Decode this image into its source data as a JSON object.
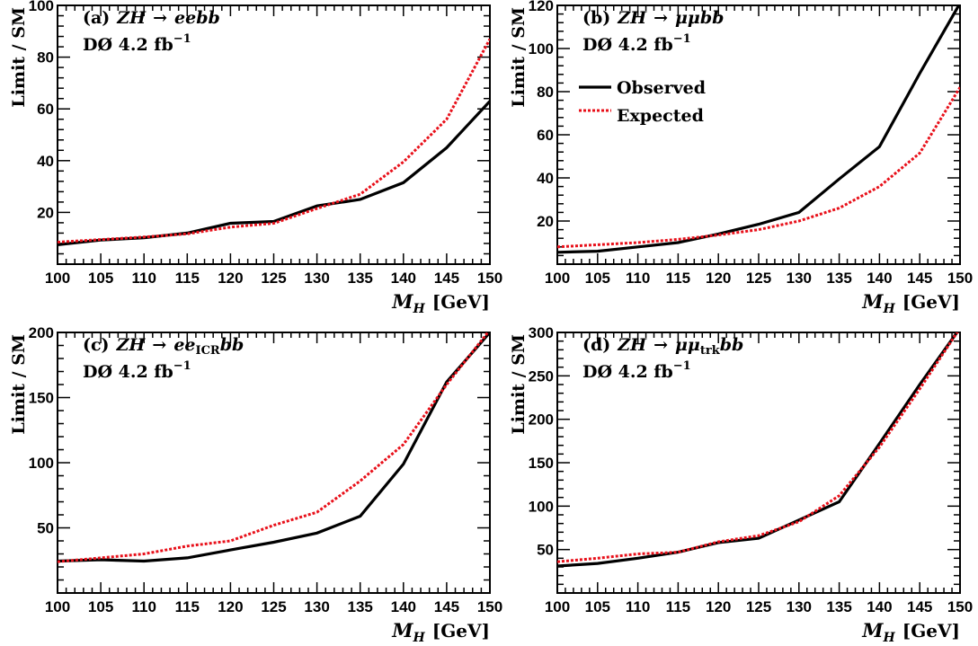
{
  "figure": {
    "xlabel_var": "M",
    "xlabel_sub": "H",
    "xlabel_unit": "[GeV]",
    "ylabel": "Limit / SM",
    "colors": {
      "observed": "#000000",
      "expected": "#e8101a"
    }
  },
  "legend": {
    "observed": "Observed",
    "expected": "Expected"
  },
  "chart_data": [
    {
      "type": "line",
      "panel": "(a)",
      "title_prefix": "(a)",
      "title_process": "ZH",
      "title_arrow": "→",
      "title_final": "eebb",
      "title_sub": "",
      "title_final_after": "",
      "note": "DØ 4.2 fb",
      "note_sup": "−1",
      "x": [
        100,
        105,
        110,
        115,
        120,
        125,
        130,
        135,
        140,
        145,
        150
      ],
      "xlim": [
        100,
        150
      ],
      "ylim": [
        0,
        100
      ],
      "xticks": [
        100,
        105,
        110,
        115,
        120,
        125,
        130,
        135,
        140,
        145,
        150
      ],
      "yticks": [
        20,
        40,
        60,
        80,
        100
      ],
      "legend": false,
      "series": [
        {
          "name": "Observed",
          "values": [
            7.5,
            9.3,
            10.2,
            12,
            15.8,
            16.5,
            22.5,
            25,
            31.5,
            45,
            63
          ]
        },
        {
          "name": "Expected",
          "values": [
            8.5,
            9.5,
            10.5,
            11.7,
            14.3,
            15.8,
            21.5,
            27,
            39.5,
            56,
            87
          ]
        }
      ]
    },
    {
      "type": "line",
      "panel": "(b)",
      "title_prefix": "(b)",
      "title_process": "ZH",
      "title_arrow": "→",
      "title_final": "μμbb",
      "title_sub": "",
      "title_final_after": "",
      "note": "DØ 4.2 fb",
      "note_sup": "−1",
      "x": [
        100,
        105,
        110,
        115,
        120,
        125,
        130,
        135,
        140,
        145,
        150
      ],
      "xlim": [
        100,
        150
      ],
      "ylim": [
        0,
        120
      ],
      "xticks": [
        100,
        105,
        110,
        115,
        120,
        125,
        130,
        135,
        140,
        145,
        150
      ],
      "yticks": [
        20,
        40,
        60,
        80,
        100,
        120
      ],
      "legend": true,
      "series": [
        {
          "name": "Observed",
          "values": [
            5.5,
            6,
            8,
            10,
            14,
            18.5,
            24,
            39.5,
            54.5,
            88.5,
            121
          ]
        },
        {
          "name": "Expected",
          "values": [
            8,
            9,
            10,
            11.5,
            13.5,
            16,
            20,
            26,
            36,
            51.5,
            82
          ]
        }
      ]
    },
    {
      "type": "line",
      "panel": "(c)",
      "title_prefix": "(c)",
      "title_process": "ZH",
      "title_arrow": "→",
      "title_final": "ee",
      "title_sub": "ICR",
      "title_final_after": "bb",
      "note": "DØ 4.2 fb",
      "note_sup": "−1",
      "x": [
        100,
        105,
        110,
        115,
        120,
        125,
        130,
        135,
        140,
        145,
        150
      ],
      "xlim": [
        100,
        150
      ],
      "ylim": [
        0,
        200
      ],
      "xticks": [
        100,
        105,
        110,
        115,
        120,
        125,
        130,
        135,
        140,
        145,
        150
      ],
      "yticks": [
        50,
        100,
        150,
        200
      ],
      "legend": false,
      "series": [
        {
          "name": "Observed",
          "values": [
            24.5,
            25.5,
            24.5,
            27,
            33,
            39,
            46,
            59,
            99,
            162,
            200
          ]
        },
        {
          "name": "Expected",
          "values": [
            24,
            27,
            30,
            36,
            40,
            52,
            62,
            86,
            114,
            160,
            202
          ]
        }
      ]
    },
    {
      "type": "line",
      "panel": "(d)",
      "title_prefix": "(d)",
      "title_process": "ZH",
      "title_arrow": "→",
      "title_final": "μμ",
      "title_sub": "trk",
      "title_final_after": "bb",
      "note": "DØ 4.2 fb",
      "note_sup": "−1",
      "x": [
        100,
        105,
        110,
        115,
        120,
        125,
        130,
        135,
        140,
        145,
        150
      ],
      "xlim": [
        100,
        150
      ],
      "ylim": [
        0,
        300
      ],
      "xticks": [
        100,
        105,
        110,
        115,
        120,
        125,
        130,
        135,
        140,
        145,
        150
      ],
      "yticks": [
        50,
        100,
        150,
        200,
        250,
        300
      ],
      "legend": false,
      "series": [
        {
          "name": "Observed",
          "values": [
            31,
            34,
            40,
            47,
            58,
            63,
            84,
            105,
            172,
            240,
            305
          ]
        },
        {
          "name": "Expected",
          "values": [
            36,
            40,
            45,
            47,
            59,
            66,
            82,
            112,
            168,
            235,
            305
          ]
        }
      ]
    }
  ]
}
